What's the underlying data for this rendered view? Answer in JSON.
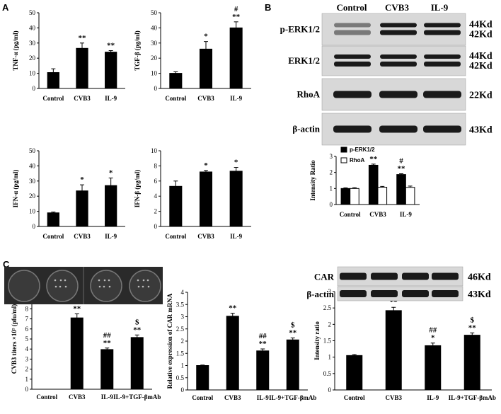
{
  "panels": {
    "a": "A",
    "b": "B",
    "c": "C"
  },
  "blot_b": {
    "lanes": [
      "Control",
      "CVB3",
      "IL-9"
    ],
    "rows": [
      {
        "label": "p-ERK1/2",
        "kd": [
          "44Kd",
          "42Kd"
        ]
      },
      {
        "label": "ERK1/2",
        "kd": [
          "44Kd",
          "42Kd"
        ]
      },
      {
        "label": "RhoA",
        "kd": [
          "22Kd"
        ]
      },
      {
        "label": "β-actin",
        "kd": [
          "43Kd"
        ]
      }
    ]
  },
  "blot_c": {
    "rows": [
      {
        "label": "CAR",
        "kd": "46Kd"
      },
      {
        "label": "β-actin",
        "kd": "43Kd"
      }
    ]
  },
  "colors": {
    "bar": "#000000",
    "open_bar": "#ffffff",
    "blot_bg": "#d8d8d8",
    "band": "#1a1a1a",
    "plaque_bg": "#2a2a2a"
  },
  "chart_data": [
    {
      "id": "tnf",
      "type": "bar",
      "categories": [
        "Control",
        "CVB3",
        "IL-9"
      ],
      "values": [
        10.5,
        26.5,
        24
      ],
      "errors": [
        2.5,
        3.5,
        1
      ],
      "sig": [
        [],
        [
          "**"
        ],
        [
          "**"
        ]
      ],
      "ylabel": "TNF-α (pg/ml)",
      "ylim": [
        0,
        50
      ],
      "yticks": [
        0,
        10,
        20,
        30,
        40,
        50
      ]
    },
    {
      "id": "tgf",
      "type": "bar",
      "categories": [
        "Control",
        "CVB3",
        "IL-9"
      ],
      "values": [
        10,
        26,
        40
      ],
      "errors": [
        1,
        5,
        4
      ],
      "sig": [
        [],
        [
          "*"
        ],
        [
          "**",
          "#"
        ]
      ],
      "ylabel": "TGF-β (pg/ml)",
      "ylim": [
        0,
        50
      ],
      "yticks": [
        0,
        10,
        20,
        30,
        40,
        50
      ]
    },
    {
      "id": "ifng",
      "type": "bar",
      "categories": [
        "Control",
        "CVB3",
        "IL-9"
      ],
      "values": [
        9,
        23.5,
        27
      ],
      "errors": [
        0.5,
        4,
        5
      ],
      "sig": [
        [],
        [
          "*"
        ],
        [
          "*"
        ]
      ],
      "ylabel": "IFN-α (pg/ml)",
      "ylim": [
        0,
        50
      ],
      "yticks": [
        0,
        10,
        20,
        30,
        40,
        50
      ]
    },
    {
      "id": "ifnb",
      "type": "bar",
      "categories": [
        "Control",
        "CVB3",
        "IL-9"
      ],
      "values": [
        5.3,
        7.2,
        7.3
      ],
      "errors": [
        0.7,
        0.2,
        0.5
      ],
      "sig": [
        [],
        [
          "*"
        ],
        [
          "*"
        ]
      ],
      "ylabel": "IFN-β (pg/ml)",
      "ylim": [
        0,
        10
      ],
      "yticks": [
        0,
        2,
        4,
        6,
        8,
        10
      ]
    },
    {
      "id": "intensity",
      "type": "bar",
      "categories": [
        "Control",
        "CVB3",
        "IL-9"
      ],
      "series": [
        {
          "name": "p-ERK1/2",
          "values": [
            1.0,
            2.45,
            1.87
          ],
          "errors": [
            0.04,
            0.07,
            0.05
          ]
        },
        {
          "name": "RhoA",
          "values": [
            1.0,
            1.08,
            1.07
          ],
          "errors": [
            0.05,
            0.05,
            0.08
          ]
        }
      ],
      "sig": [
        [],
        [
          "**"
        ],
        [
          "**",
          "#"
        ]
      ],
      "ylabel": "Intensity Ratio",
      "ylim": [
        0,
        3
      ],
      "yticks": [
        0,
        1,
        2,
        3
      ],
      "legend": "top-left"
    },
    {
      "id": "titers",
      "type": "bar",
      "categories": [
        "Control",
        "CVB3",
        "IL-9",
        "IL-9+TGF-βmAb"
      ],
      "values": [
        0,
        7.1,
        3.95,
        5.15
      ],
      "errors": [
        0,
        0.4,
        0.15,
        0.25
      ],
      "sig": [
        [],
        [
          "**"
        ],
        [
          "**",
          "##"
        ],
        [
          "**",
          "$"
        ]
      ],
      "ylabel": "CVB3 titers ×10⁵ (pfu/ml)",
      "ylim": [
        0,
        10
      ],
      "yticks": [
        0,
        1,
        2,
        3,
        4,
        5,
        6,
        7,
        8,
        9,
        10
      ]
    },
    {
      "id": "carmrna",
      "type": "bar",
      "categories": [
        "Control",
        "CVB3",
        "IL-9",
        "IL-9+TGF-βmAb"
      ],
      "values": [
        1.0,
        3.02,
        1.6,
        2.05
      ],
      "errors": [
        0.02,
        0.12,
        0.08,
        0.08
      ],
      "sig": [
        [],
        [
          "**"
        ],
        [
          "**",
          "##"
        ],
        [
          "**",
          "$"
        ]
      ],
      "ylabel": "Relative expression of CAR mRNA",
      "ylim": [
        0,
        4
      ],
      "yticks": [
        0,
        0.5,
        1,
        1.5,
        2,
        2.5,
        3,
        3.5,
        4
      ]
    },
    {
      "id": "intratio",
      "type": "bar",
      "categories": [
        "Control",
        "CVB3",
        "IL-9",
        "IL-9+TGF-βmAb"
      ],
      "values": [
        1.05,
        2.42,
        1.35,
        1.67
      ],
      "errors": [
        0.03,
        0.1,
        0.08,
        0.07
      ],
      "sig": [
        [],
        [
          "**"
        ],
        [
          "*",
          "##"
        ],
        [
          "**",
          "$"
        ]
      ],
      "ylabel": "Intensity ratio",
      "ylim": [
        0,
        3
      ],
      "yticks": [
        0,
        0.5,
        1,
        1.5,
        2,
        2.5,
        3
      ]
    }
  ]
}
